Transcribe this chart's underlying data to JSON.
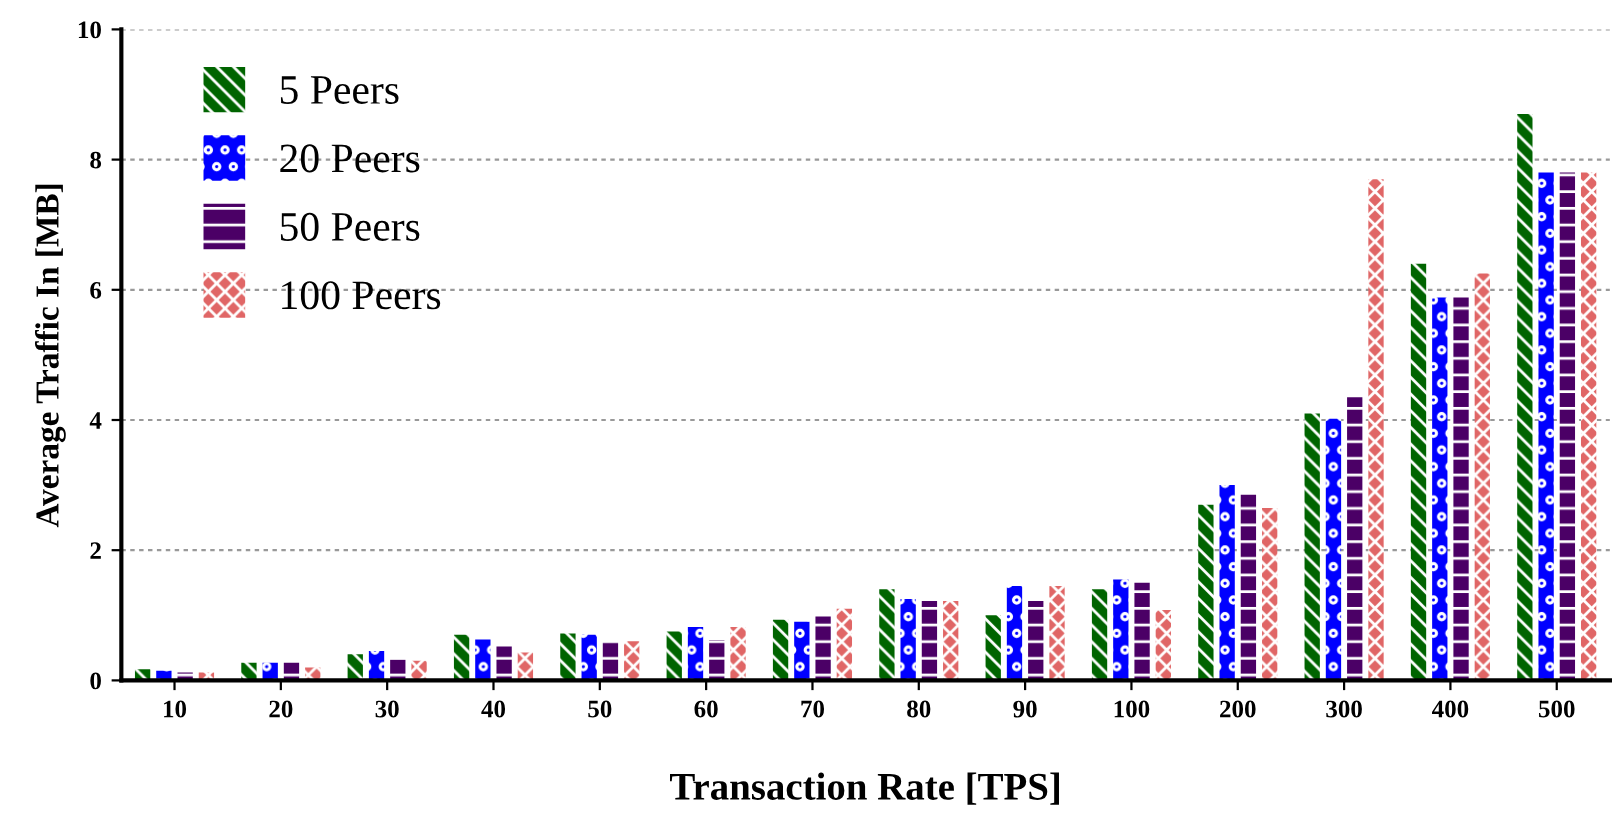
{
  "chart_data": {
    "type": "bar",
    "xlabel": "Transaction Rate [TPS]",
    "ylabel": "Average Traffic In [MB]",
    "categories": [
      "10",
      "20",
      "30",
      "40",
      "50",
      "60",
      "70",
      "80",
      "90",
      "100",
      "200",
      "300",
      "400",
      "500"
    ],
    "series": [
      {
        "name": "5 Peers",
        "color": "#006400",
        "values": [
          0.17,
          0.27,
          0.4,
          0.7,
          0.72,
          0.75,
          0.93,
          1.4,
          1.0,
          1.4,
          2.7,
          4.1,
          6.4,
          8.7
        ]
      },
      {
        "name": "20 Peers",
        "color": "#0000ff",
        "values": [
          0.15,
          0.27,
          0.45,
          0.63,
          0.7,
          0.82,
          0.9,
          1.25,
          1.45,
          1.55,
          3.0,
          4.02,
          5.88,
          7.8
        ]
      },
      {
        "name": "50 Peers",
        "color": "#4b0066",
        "values": [
          0.12,
          0.27,
          0.32,
          0.52,
          0.6,
          0.62,
          0.98,
          1.22,
          1.22,
          1.5,
          2.85,
          4.35,
          5.88,
          7.8
        ]
      },
      {
        "name": "100 Peers",
        "color": "#e06666",
        "values": [
          0.12,
          0.2,
          0.3,
          0.43,
          0.6,
          0.82,
          1.1,
          1.22,
          1.45,
          1.08,
          2.65,
          7.7,
          6.25,
          7.8
        ]
      }
    ],
    "ylim": [
      0,
      10
    ],
    "yticks": [
      0,
      2,
      4,
      6,
      8,
      10
    ],
    "grid": "y",
    "legend": "top left"
  }
}
